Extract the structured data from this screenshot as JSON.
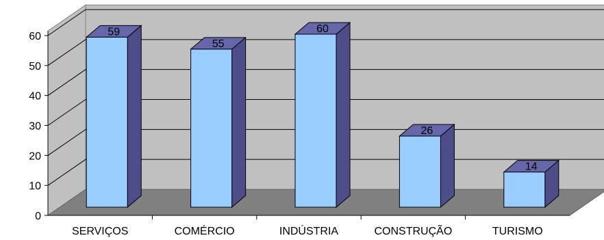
{
  "chart_data": {
    "type": "bar",
    "categories": [
      "SERVIÇOS",
      "COMÉRCIO",
      "INDÚSTRIA",
      "CONSTRUÇÃO",
      "TURISMO"
    ],
    "values": [
      59,
      55,
      60,
      26,
      14
    ],
    "yticks": [
      "0",
      "10",
      "20",
      "30",
      "40",
      "50",
      "60"
    ],
    "ylim": [
      0,
      62
    ],
    "grid": true,
    "legend": "none",
    "style": "3d-column",
    "colors": {
      "bar_front": "#99ccff",
      "bar_side": "#4d4d8a",
      "bar_top": "#6666aa",
      "back_wall": "#c0c0c0",
      "floor": "#808080",
      "gridline": "#000000"
    }
  }
}
